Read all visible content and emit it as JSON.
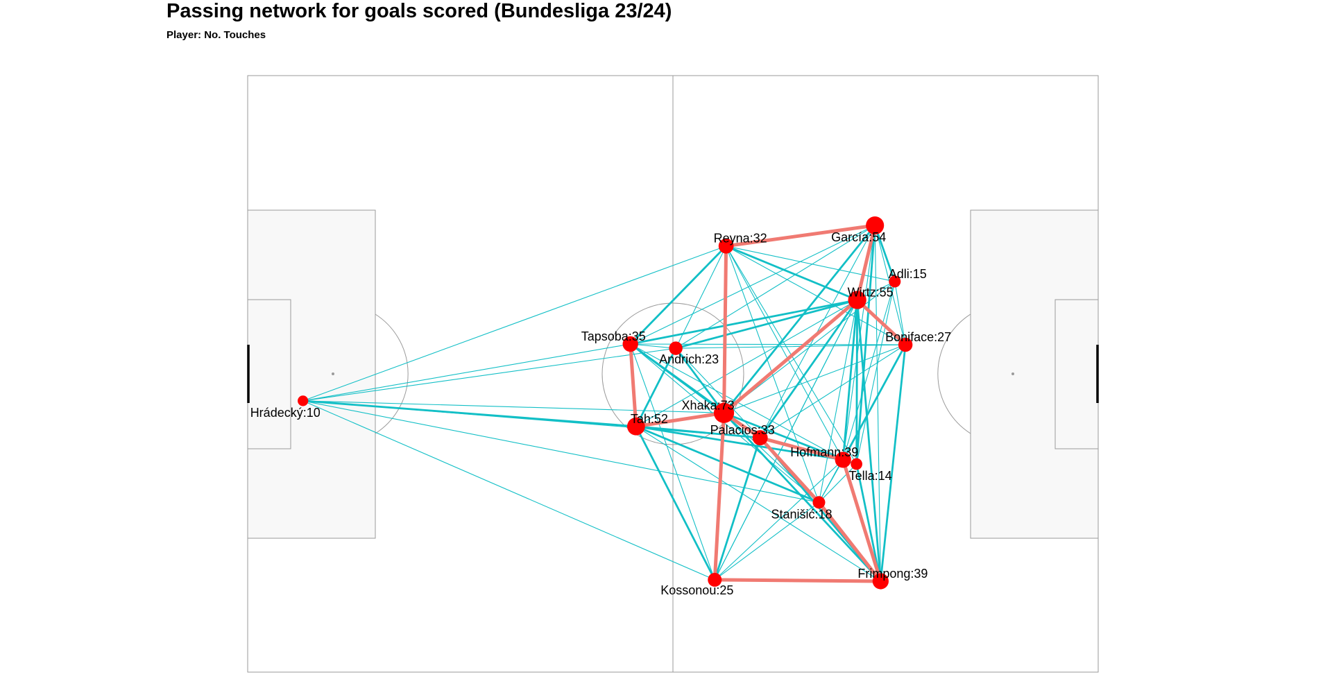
{
  "title": "Passing network for goals scored (Bundesliga 23/24)",
  "subtitle": "Player: No. Touches",
  "colors": {
    "node": "#ff0000",
    "strong_edge": "#f07a72",
    "weak_edge": "#12bfc6",
    "pitch_line": "#9a9a9a",
    "box_fill": "#f8f8f8"
  },
  "chart_data": {
    "type": "network",
    "x_range": [
      0,
      120
    ],
    "y_range": [
      0,
      84
    ],
    "players": [
      {
        "id": "hradecky",
        "name": "Hrádecký",
        "touches": 10,
        "label": "Hrádecký:10",
        "x": 7.8,
        "y": 38.2
      },
      {
        "id": "tah",
        "name": "Tah",
        "touches": 52,
        "label": "Tah:52",
        "x": 54.8,
        "y": 34.6
      },
      {
        "id": "tapsoba",
        "name": "Tapsoba",
        "touches": 35,
        "label": "Tapsoba:35",
        "x": 54.0,
        "y": 46.2
      },
      {
        "id": "andrich",
        "name": "Andrich",
        "touches": 23,
        "label": "Andrich:23",
        "x": 60.4,
        "y": 45.6
      },
      {
        "id": "reyna",
        "name": "Reyna",
        "touches": 32,
        "label": "Reyna:32",
        "x": 67.5,
        "y": 60.0
      },
      {
        "id": "xhaka",
        "name": "Xhaka",
        "touches": 73,
        "label": "Xhaka:73",
        "x": 67.2,
        "y": 36.5
      },
      {
        "id": "palacios",
        "name": "Palacios",
        "touches": 33,
        "label": "Palacios:33",
        "x": 72.3,
        "y": 33.0
      },
      {
        "id": "kossonou",
        "name": "Kossonou",
        "touches": 25,
        "label": "Kossonou:25",
        "x": 65.9,
        "y": 13.0
      },
      {
        "id": "garcia",
        "name": "García",
        "touches": 54,
        "label": "García:54",
        "x": 88.5,
        "y": 62.9
      },
      {
        "id": "adli",
        "name": "Adli",
        "touches": 15,
        "label": "Adli:15",
        "x": 91.3,
        "y": 55.0
      },
      {
        "id": "wirtz",
        "name": "Wirtz",
        "touches": 55,
        "label": "Wirtz:55",
        "x": 86.0,
        "y": 52.4
      },
      {
        "id": "boniface",
        "name": "Boniface",
        "touches": 27,
        "label": "Boniface:27",
        "x": 92.8,
        "y": 46.1
      },
      {
        "id": "hofmann",
        "name": "Hofmann",
        "touches": 39,
        "label": "Hofmann:39",
        "x": 84.0,
        "y": 29.9
      },
      {
        "id": "tella",
        "name": "Tella",
        "touches": 14,
        "label": "Tella:14",
        "x": 85.9,
        "y": 29.3
      },
      {
        "id": "stanisic",
        "name": "Stanišić",
        "touches": 18,
        "label": "Stanišić:18",
        "x": 80.6,
        "y": 23.9
      },
      {
        "id": "frimpong",
        "name": "Frimpong",
        "touches": 39,
        "label": "Frimpong:39",
        "x": 89.3,
        "y": 12.8
      }
    ],
    "edges": [
      {
        "from": "reyna",
        "to": "garcia",
        "strength": "strong"
      },
      {
        "from": "reyna",
        "to": "xhaka",
        "strength": "strong"
      },
      {
        "from": "garcia",
        "to": "wirtz",
        "strength": "strong"
      },
      {
        "from": "wirtz",
        "to": "xhaka",
        "strength": "strong"
      },
      {
        "from": "wirtz",
        "to": "boniface",
        "strength": "strong"
      },
      {
        "from": "tapsoba",
        "to": "tah",
        "strength": "strong"
      },
      {
        "from": "tah",
        "to": "xhaka",
        "strength": "strong"
      },
      {
        "from": "xhaka",
        "to": "palacios",
        "strength": "strong"
      },
      {
        "from": "xhaka",
        "to": "kossonou",
        "strength": "strong"
      },
      {
        "from": "palacios",
        "to": "hofmann",
        "strength": "strong"
      },
      {
        "from": "palacios",
        "to": "stanisic",
        "strength": "strong"
      },
      {
        "from": "hofmann",
        "to": "frimpong",
        "strength": "strong"
      },
      {
        "from": "kossonou",
        "to": "frimpong",
        "strength": "strong"
      },
      {
        "from": "stanisic",
        "to": "frimpong",
        "strength": "strong"
      },
      {
        "from": "hradecky",
        "to": "tah",
        "strength": "medium"
      },
      {
        "from": "garcia",
        "to": "xhaka",
        "strength": "medium"
      },
      {
        "from": "garcia",
        "to": "tella",
        "strength": "medium"
      },
      {
        "from": "garcia",
        "to": "adli",
        "strength": "medium"
      },
      {
        "from": "wirtz",
        "to": "tapsoba",
        "strength": "medium"
      },
      {
        "from": "wirtz",
        "to": "andrich",
        "strength": "medium"
      },
      {
        "from": "wirtz",
        "to": "hofmann",
        "strength": "medium"
      },
      {
        "from": "wirtz",
        "to": "tella",
        "strength": "medium"
      },
      {
        "from": "wirtz",
        "to": "frimpong",
        "strength": "medium"
      },
      {
        "from": "reyna",
        "to": "tapsoba",
        "strength": "medium"
      },
      {
        "from": "reyna",
        "to": "wirtz",
        "strength": "medium"
      },
      {
        "from": "tapsoba",
        "to": "xhaka",
        "strength": "medium"
      },
      {
        "from": "tapsoba",
        "to": "palacios",
        "strength": "medium"
      },
      {
        "from": "andrich",
        "to": "xhaka",
        "strength": "medium"
      },
      {
        "from": "andrich",
        "to": "tah",
        "strength": "medium"
      },
      {
        "from": "tah",
        "to": "palacios",
        "strength": "medium"
      },
      {
        "from": "tah",
        "to": "hofmann",
        "strength": "medium"
      },
      {
        "from": "tah",
        "to": "stanisic",
        "strength": "medium"
      },
      {
        "from": "tah",
        "to": "kossonou",
        "strength": "medium"
      },
      {
        "from": "boniface",
        "to": "frimpong",
        "strength": "medium"
      },
      {
        "from": "boniface",
        "to": "hofmann",
        "strength": "medium"
      },
      {
        "from": "xhaka",
        "to": "frimpong",
        "strength": "medium"
      },
      {
        "from": "xhaka",
        "to": "hofmann",
        "strength": "medium"
      },
      {
        "from": "palacios",
        "to": "frimpong",
        "strength": "medium"
      },
      {
        "from": "palacios",
        "to": "wirtz",
        "strength": "medium"
      },
      {
        "from": "tella",
        "to": "frimpong",
        "strength": "medium"
      },
      {
        "from": "kossonou",
        "to": "palacios",
        "strength": "medium"
      },
      {
        "from": "hradecky",
        "to": "tapsoba",
        "strength": "weak"
      },
      {
        "from": "hradecky",
        "to": "andrich",
        "strength": "weak"
      },
      {
        "from": "hradecky",
        "to": "reyna",
        "strength": "weak"
      },
      {
        "from": "hradecky",
        "to": "xhaka",
        "strength": "weak"
      },
      {
        "from": "hradecky",
        "to": "palacios",
        "strength": "weak"
      },
      {
        "from": "hradecky",
        "to": "kossonou",
        "strength": "weak"
      },
      {
        "from": "hradecky",
        "to": "stanisic",
        "strength": "weak"
      },
      {
        "from": "reyna",
        "to": "adli",
        "strength": "weak"
      },
      {
        "from": "reyna",
        "to": "boniface",
        "strength": "weak"
      },
      {
        "from": "reyna",
        "to": "hofmann",
        "strength": "weak"
      },
      {
        "from": "reyna",
        "to": "stanisic",
        "strength": "weak"
      },
      {
        "from": "reyna",
        "to": "andrich",
        "strength": "weak"
      },
      {
        "from": "reyna",
        "to": "tella",
        "strength": "weak"
      },
      {
        "from": "garcia",
        "to": "tapsoba",
        "strength": "weak"
      },
      {
        "from": "garcia",
        "to": "andrich",
        "strength": "weak"
      },
      {
        "from": "garcia",
        "to": "boniface",
        "strength": "weak"
      },
      {
        "from": "garcia",
        "to": "hofmann",
        "strength": "weak"
      },
      {
        "from": "garcia",
        "to": "frimpong",
        "strength": "weak"
      },
      {
        "from": "garcia",
        "to": "palacios",
        "strength": "weak"
      },
      {
        "from": "adli",
        "to": "wirtz",
        "strength": "weak"
      },
      {
        "from": "adli",
        "to": "boniface",
        "strength": "weak"
      },
      {
        "from": "adli",
        "to": "hofmann",
        "strength": "weak"
      },
      {
        "from": "adli",
        "to": "tella",
        "strength": "weak"
      },
      {
        "from": "adli",
        "to": "xhaka",
        "strength": "weak"
      },
      {
        "from": "wirtz",
        "to": "tah",
        "strength": "weak"
      },
      {
        "from": "wirtz",
        "to": "stanisic",
        "strength": "weak"
      },
      {
        "from": "wirtz",
        "to": "kossonou",
        "strength": "weak"
      },
      {
        "from": "boniface",
        "to": "tapsoba",
        "strength": "weak"
      },
      {
        "from": "boniface",
        "to": "xhaka",
        "strength": "weak"
      },
      {
        "from": "boniface",
        "to": "stanisic",
        "strength": "weak"
      },
      {
        "from": "boniface",
        "to": "palacios",
        "strength": "weak"
      },
      {
        "from": "tapsoba",
        "to": "andrich",
        "strength": "weak"
      },
      {
        "from": "tapsoba",
        "to": "hofmann",
        "strength": "weak"
      },
      {
        "from": "tapsoba",
        "to": "stanisic",
        "strength": "weak"
      },
      {
        "from": "andrich",
        "to": "palacios",
        "strength": "weak"
      },
      {
        "from": "andrich",
        "to": "boniface",
        "strength": "weak"
      },
      {
        "from": "tah",
        "to": "frimpong",
        "strength": "weak"
      },
      {
        "from": "xhaka",
        "to": "stanisic",
        "strength": "weak"
      },
      {
        "from": "xhaka",
        "to": "tella",
        "strength": "weak"
      },
      {
        "from": "palacios",
        "to": "tella",
        "strength": "weak"
      },
      {
        "from": "kossonou",
        "to": "hofmann",
        "strength": "weak"
      },
      {
        "from": "kossonou",
        "to": "stanisic",
        "strength": "weak"
      },
      {
        "from": "kossonou",
        "to": "wirtz",
        "strength": "weak"
      },
      {
        "from": "kossonou",
        "to": "tapsoba",
        "strength": "weak"
      },
      {
        "from": "hofmann",
        "to": "stanisic",
        "strength": "weak"
      },
      {
        "from": "hofmann",
        "to": "tella",
        "strength": "weak"
      },
      {
        "from": "stanisic",
        "to": "tella",
        "strength": "weak"
      }
    ]
  }
}
